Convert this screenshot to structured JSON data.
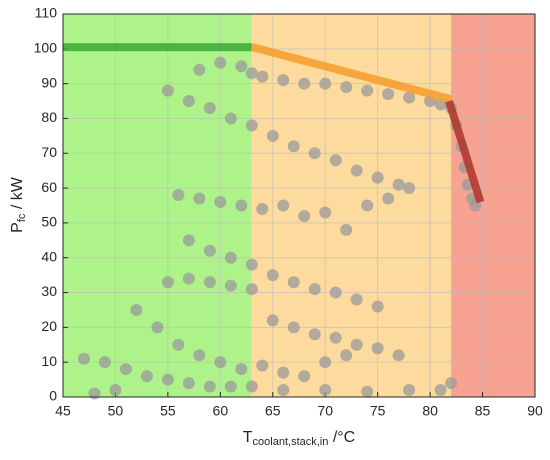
{
  "chart_data": {
    "type": "scatter",
    "xlim": [
      45,
      90
    ],
    "ylim": [
      0,
      110
    ],
    "xticks": [
      45,
      50,
      55,
      60,
      65,
      70,
      75,
      80,
      85,
      90
    ],
    "yticks": [
      0,
      10,
      20,
      30,
      40,
      50,
      60,
      70,
      80,
      90,
      100,
      110
    ],
    "grid": true,
    "xlabel": {
      "text": "T",
      "sub": "coolant,stack,in",
      "unit": " /°C"
    },
    "ylabel": {
      "text": "P",
      "sub": "fc",
      "unit": " / kW"
    },
    "zones": [
      {
        "x": [
          45,
          63
        ],
        "color": "#aef38a"
      },
      {
        "x": [
          63,
          82
        ],
        "color": "#fddb9e"
      },
      {
        "x": [
          82,
          90
        ],
        "color": "#f8a292"
      }
    ],
    "lines": [
      {
        "color": "#3fae3a",
        "x": [
          45,
          63
        ],
        "y": [
          100.5,
          100.5
        ]
      },
      {
        "color": "#f5a030",
        "x": [
          63,
          82
        ],
        "y": [
          100.5,
          85.5
        ]
      },
      {
        "color": "#b23a30",
        "x": [
          81.8,
          84.8
        ],
        "y": [
          85,
          56
        ]
      }
    ],
    "series": [
      {
        "color": "#999999",
        "x": [
          58,
          60,
          62,
          63,
          64,
          66,
          68,
          70,
          72,
          74,
          76,
          78,
          80,
          81,
          82,
          82.5,
          83,
          83.3,
          83.6,
          84,
          84.3,
          55,
          57,
          59,
          61,
          63,
          65,
          67,
          69,
          71,
          73,
          75,
          77,
          78,
          56,
          58,
          60,
          62,
          64,
          66,
          68,
          70,
          72,
          74,
          76,
          57,
          59,
          61,
          63,
          65,
          67,
          69,
          71,
          73,
          75,
          55,
          57,
          59,
          61,
          63,
          65,
          67,
          69,
          71,
          73,
          75,
          77,
          47,
          49,
          51,
          53,
          55,
          57,
          59,
          61,
          63,
          66,
          70,
          74,
          78,
          81,
          82,
          52,
          54,
          56,
          58,
          60,
          62,
          64,
          66,
          68,
          70,
          72,
          48,
          50
        ],
        "values": [
          94,
          96,
          95,
          93,
          92,
          91,
          90,
          90,
          89,
          88,
          87,
          86,
          85,
          84,
          83,
          78,
          72,
          66,
          61,
          57,
          55,
          88,
          85,
          83,
          80,
          78,
          75,
          72,
          70,
          68,
          65,
          63,
          61,
          60,
          58,
          57,
          56,
          55,
          54,
          55,
          52,
          53,
          48,
          55,
          57,
          45,
          42,
          40,
          38,
          35,
          33,
          31,
          30,
          28,
          26,
          33,
          34,
          33,
          32,
          31,
          22,
          20,
          18,
          17,
          15,
          14,
          12,
          11,
          10,
          8,
          6,
          5,
          4,
          3,
          3,
          3,
          2,
          2,
          1.5,
          2,
          2,
          4,
          25,
          20,
          15,
          12,
          10,
          8,
          9,
          7,
          6,
          10,
          12,
          1,
          2
        ]
      }
    ]
  }
}
